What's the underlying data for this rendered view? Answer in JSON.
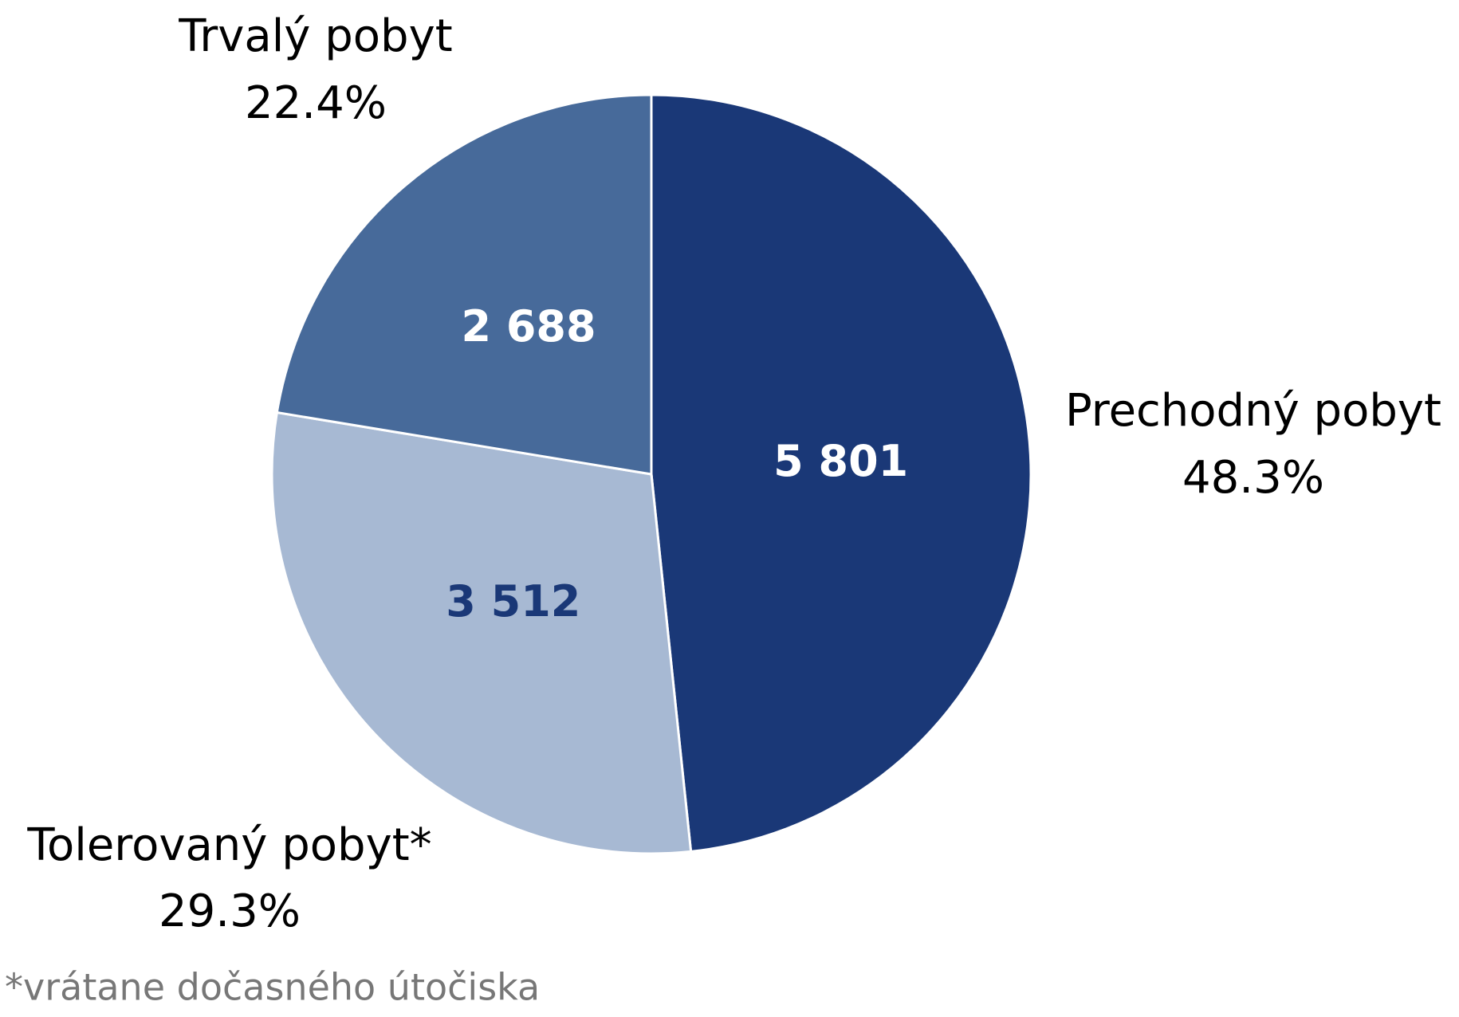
{
  "chart_data": {
    "type": "pie",
    "categories": [
      "Prechodný pobyt",
      "Tolerovaný pobyt*",
      "Trvalý pobyt"
    ],
    "values": [
      5801,
      3512,
      2688
    ],
    "value_labels": [
      "5 801",
      "3 512",
      "2 688"
    ],
    "percents": [
      48.3,
      29.3,
      22.4
    ],
    "percent_labels": [
      "48.3%",
      "29.3%",
      "22.4%"
    ],
    "colors": [
      "#1a3877",
      "#a7b9d3",
      "#476a9a"
    ],
    "label_colors": [
      "#ffffff",
      "#1a3877",
      "#ffffff"
    ],
    "footnote": "*vrátane dočasného útočiska"
  }
}
